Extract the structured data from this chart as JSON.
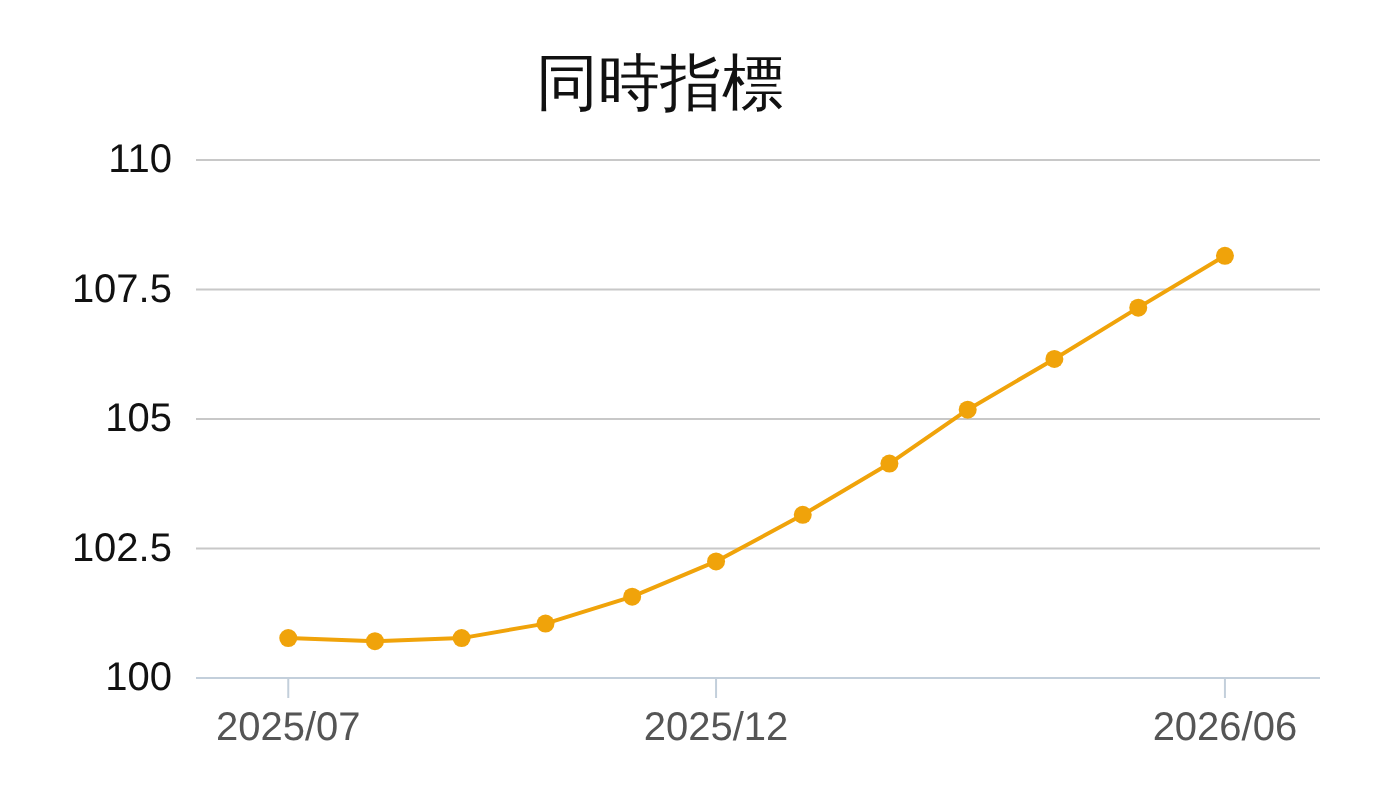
{
  "chart_data": {
    "type": "line",
    "title": "同時指標",
    "x": [
      "2025-07",
      "2025-08",
      "2025-09",
      "2025-10",
      "2025-11",
      "2025-12",
      "2026-01",
      "2026-02",
      "2026-03",
      "2026-04",
      "2026-05",
      "2026-06"
    ],
    "series": [
      {
        "color": "#f0a30a",
        "values": [
          100.77,
          100.71,
          100.77,
          101.05,
          101.57,
          102.25,
          103.15,
          104.14,
          105.18,
          106.16,
          107.15,
          108.15
        ]
      }
    ],
    "xlim": [
      "2025-05-29",
      "2026-07-05"
    ],
    "xticks": [
      {
        "value": "2025-07",
        "label": "2025/07"
      },
      {
        "value": "2025-12",
        "label": "2025/12"
      },
      {
        "value": "2026-06",
        "label": "2026/06"
      }
    ],
    "ylim": [
      100,
      110
    ],
    "yticks": [
      100,
      102.5,
      105,
      107.5,
      110
    ],
    "grid": "y",
    "marker": "circle",
    "line_style": "solid"
  }
}
